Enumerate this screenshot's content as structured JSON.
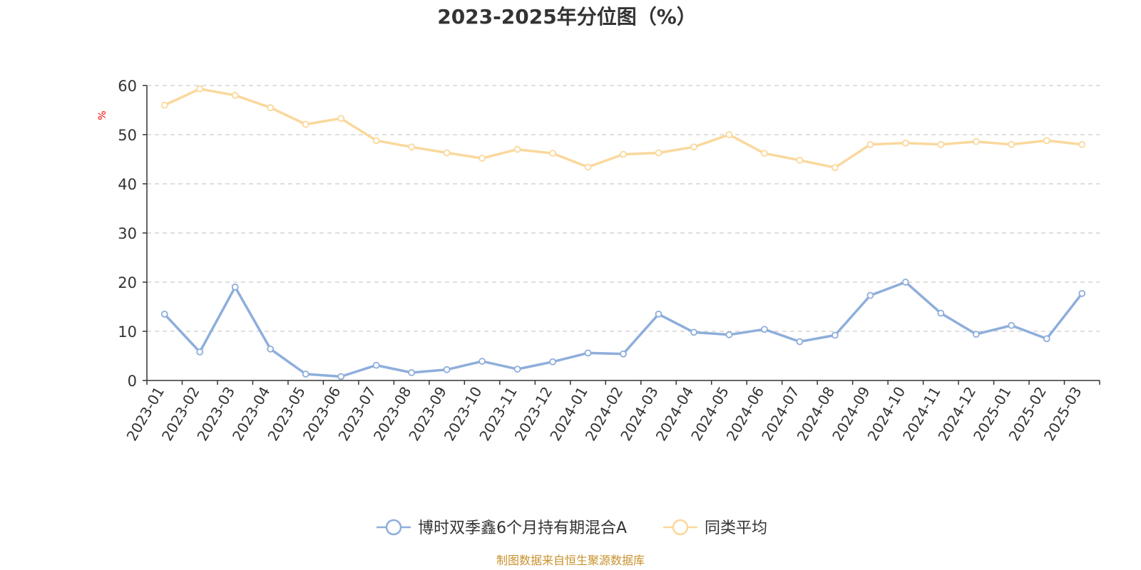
{
  "colors": {
    "fund_series": "#8eaedb",
    "peer_series": "#fad89c",
    "unit_label": "#ff0000",
    "source_text": "#c8912d",
    "grid": "#cccccc",
    "axis": "#333333"
  },
  "chart_data": {
    "type": "line",
    "title": "2023-2025年分位图（%）",
    "ylabel": "%",
    "xlabel": "",
    "ylim": [
      0,
      60
    ],
    "yticks": [
      0,
      10,
      20,
      30,
      40,
      50,
      60
    ],
    "grid": "horizontal dashed",
    "legend_position": "bottom-center",
    "categories": [
      "2023-01",
      "2023-02",
      "2023-03",
      "2023-04",
      "2023-05",
      "2023-06",
      "2023-07",
      "2023-08",
      "2023-09",
      "2023-10",
      "2023-11",
      "2023-12",
      "2024-01",
      "2024-02",
      "2024-03",
      "2024-04",
      "2024-05",
      "2024-06",
      "2024-07",
      "2024-08",
      "2024-09",
      "2024-10",
      "2024-11",
      "2024-12",
      "2025-01",
      "2025-02",
      "2025-03"
    ],
    "series": [
      {
        "name": "博时双季鑫6个月持有期混合A",
        "values": [
          13.5,
          5.8,
          19.0,
          6.4,
          1.3,
          0.8,
          3.1,
          1.6,
          2.2,
          3.9,
          2.3,
          3.8,
          5.6,
          5.4,
          13.5,
          9.8,
          9.3,
          10.4,
          7.9,
          9.2,
          17.3,
          20.0,
          13.7,
          9.4,
          11.2,
          8.5,
          17.7
        ]
      },
      {
        "name": "同类平均",
        "values": [
          56.0,
          59.3,
          58.0,
          55.5,
          52.1,
          53.3,
          48.8,
          47.5,
          46.3,
          45.2,
          47.0,
          46.2,
          43.4,
          46.0,
          46.3,
          47.5,
          50.0,
          46.2,
          44.8,
          43.3,
          48.0,
          48.3,
          48.0,
          48.6,
          48.0,
          48.8,
          48.0
        ]
      }
    ]
  },
  "source_note": "制图数据来自恒生聚源数据库"
}
